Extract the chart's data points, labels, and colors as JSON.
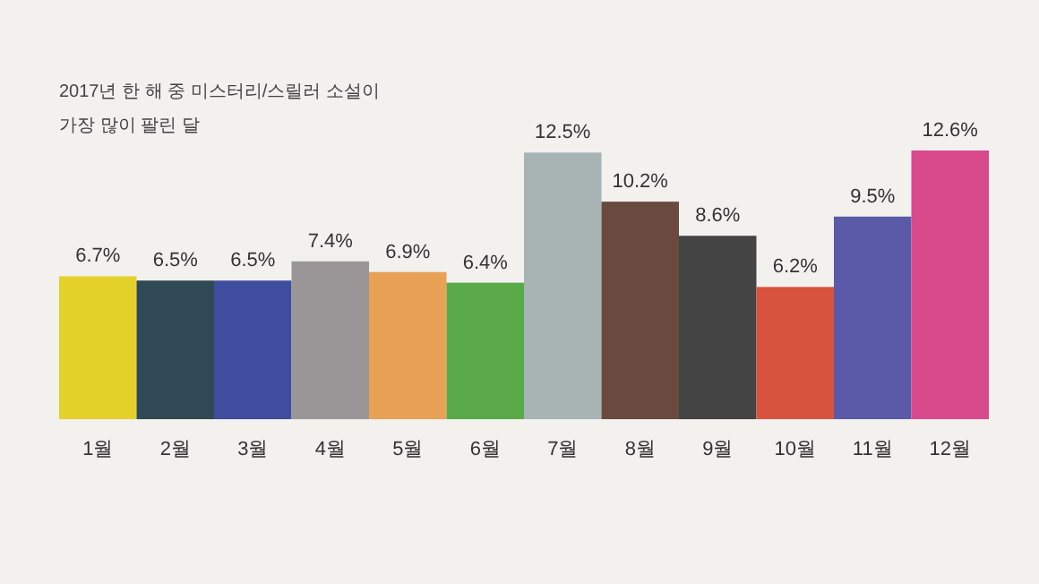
{
  "chart_data": {
    "type": "bar",
    "title": "2017년 한 해 중 미스터리/스릴러 소설이",
    "subtitle": "가장 많이 팔린 달",
    "categories": [
      "1월",
      "2월",
      "3월",
      "4월",
      "5월",
      "6월",
      "7월",
      "8월",
      "9월",
      "10월",
      "11월",
      "12월"
    ],
    "values": [
      6.7,
      6.5,
      6.5,
      7.4,
      6.9,
      6.4,
      12.5,
      10.2,
      8.6,
      6.2,
      9.5,
      12.6
    ],
    "value_labels": [
      "6.7%",
      "6.5%",
      "6.5%",
      "7.4%",
      "6.9%",
      "6.4%",
      "12.5%",
      "10.2%",
      "8.6%",
      "6.2%",
      "9.5%",
      "12.6%"
    ],
    "colors": [
      "#e4d12a",
      "#2f4a55",
      "#3f4d9e",
      "#9a9698",
      "#e8a155",
      "#5aaa4a",
      "#a8b4b4",
      "#6a4a3e",
      "#444444",
      "#d8533e",
      "#5a5aa8",
      "#d84a8c"
    ]
  }
}
